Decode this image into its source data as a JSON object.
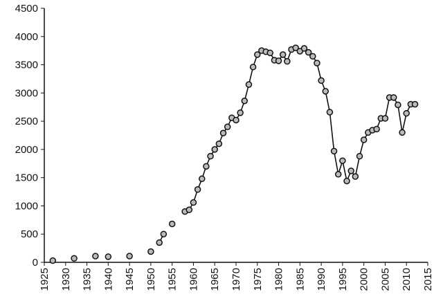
{
  "chart_data": {
    "type": "line",
    "marker": true,
    "x": [
      1927,
      1928,
      1932,
      1933,
      1937,
      1938,
      1940,
      1941,
      1945,
      1946,
      1950,
      1951,
      1952,
      1953,
      1954,
      1955,
      1956,
      1958,
      1959,
      1960,
      1961,
      1962,
      1963,
      1964,
      1965,
      1966,
      1967,
      1968,
      1969,
      1970,
      1971,
      1972,
      1973,
      1974,
      1975,
      1976,
      1977,
      1978,
      1979,
      1980,
      1981,
      1982,
      1983,
      1984,
      1985,
      1986,
      1987,
      1988,
      1989,
      1990,
      1991,
      1992,
      1993,
      1994,
      1995,
      1996,
      1997,
      1998,
      1999,
      2000,
      2001,
      2002,
      2003,
      2004,
      2005,
      2006,
      2007,
      2008,
      2009,
      2010,
      2011,
      2012
    ],
    "series": [
      {
        "color": "#111111",
        "values": [
          30,
          null,
          70,
          null,
          110,
          null,
          100,
          null,
          110,
          null,
          190,
          null,
          350,
          500,
          null,
          680,
          null,
          900,
          930,
          1060,
          1290,
          1480,
          1700,
          1880,
          2000,
          2100,
          2290,
          2400,
          2560,
          2520,
          2650,
          2860,
          3150,
          3460,
          3680,
          3750,
          3730,
          3710,
          3580,
          3570,
          3680,
          3560,
          3770,
          3800,
          3740,
          3790,
          3720,
          3650,
          3530,
          3220,
          3030,
          2660,
          1970,
          1560,
          1800,
          1440,
          1620,
          1520,
          1880,
          2170,
          2300,
          2340,
          2360,
          2550,
          2550,
          2920,
          2920,
          2790,
          2300,
          2640,
          2800,
          2800
        ]
      }
    ],
    "xlim": [
      1925,
      2015
    ],
    "xticks": [
      1925,
      1930,
      1935,
      1940,
      1945,
      1950,
      1955,
      1960,
      1965,
      1970,
      1975,
      1980,
      1985,
      1990,
      1995,
      2000,
      2005,
      2010,
      2015
    ],
    "ylim": [
      0,
      4500
    ],
    "yticks": [
      0,
      500,
      1000,
      1500,
      2000,
      2500,
      3000,
      3500,
      4000,
      4500
    ]
  }
}
